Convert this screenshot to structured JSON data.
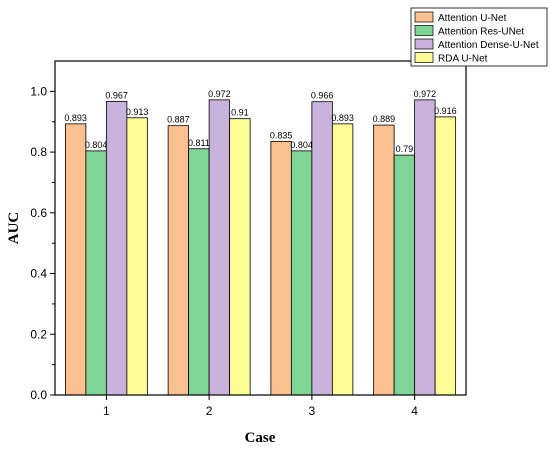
{
  "chart_data": {
    "type": "bar",
    "title": "",
    "xlabel": "Case",
    "ylabel": "AUC",
    "categories": [
      "1",
      "2",
      "3",
      "4"
    ],
    "ylim": [
      0.0,
      1.1
    ],
    "yticks": [
      "0.0",
      "0.2",
      "0.4",
      "0.6",
      "0.8",
      "1.0"
    ],
    "grid": false,
    "legend_position": "top-right",
    "series": [
      {
        "name": "Attention U-Net",
        "color": "#fac090",
        "values": [
          0.893,
          0.887,
          0.835,
          0.889
        ],
        "labels": [
          "0.893",
          "0.887",
          "0.835",
          "0.889"
        ]
      },
      {
        "name": "Attention Res-UNet",
        "color": "#7fd596",
        "values": [
          0.804,
          0.811,
          0.804,
          0.79
        ],
        "labels": [
          "0.804",
          "0.811",
          "0.804",
          "0.79"
        ]
      },
      {
        "name": "Attention Dense-U-Net",
        "color": "#c9b2dc",
        "values": [
          0.967,
          0.972,
          0.966,
          0.972
        ],
        "labels": [
          "0.967",
          "0.972",
          "0.966",
          "0.972"
        ]
      },
      {
        "name": "RDA U-Net",
        "color": "#fdfd96",
        "values": [
          0.913,
          0.91,
          0.893,
          0.916
        ],
        "labels": [
          "0.913",
          "0.91",
          "0.893",
          "0.916"
        ]
      }
    ]
  }
}
